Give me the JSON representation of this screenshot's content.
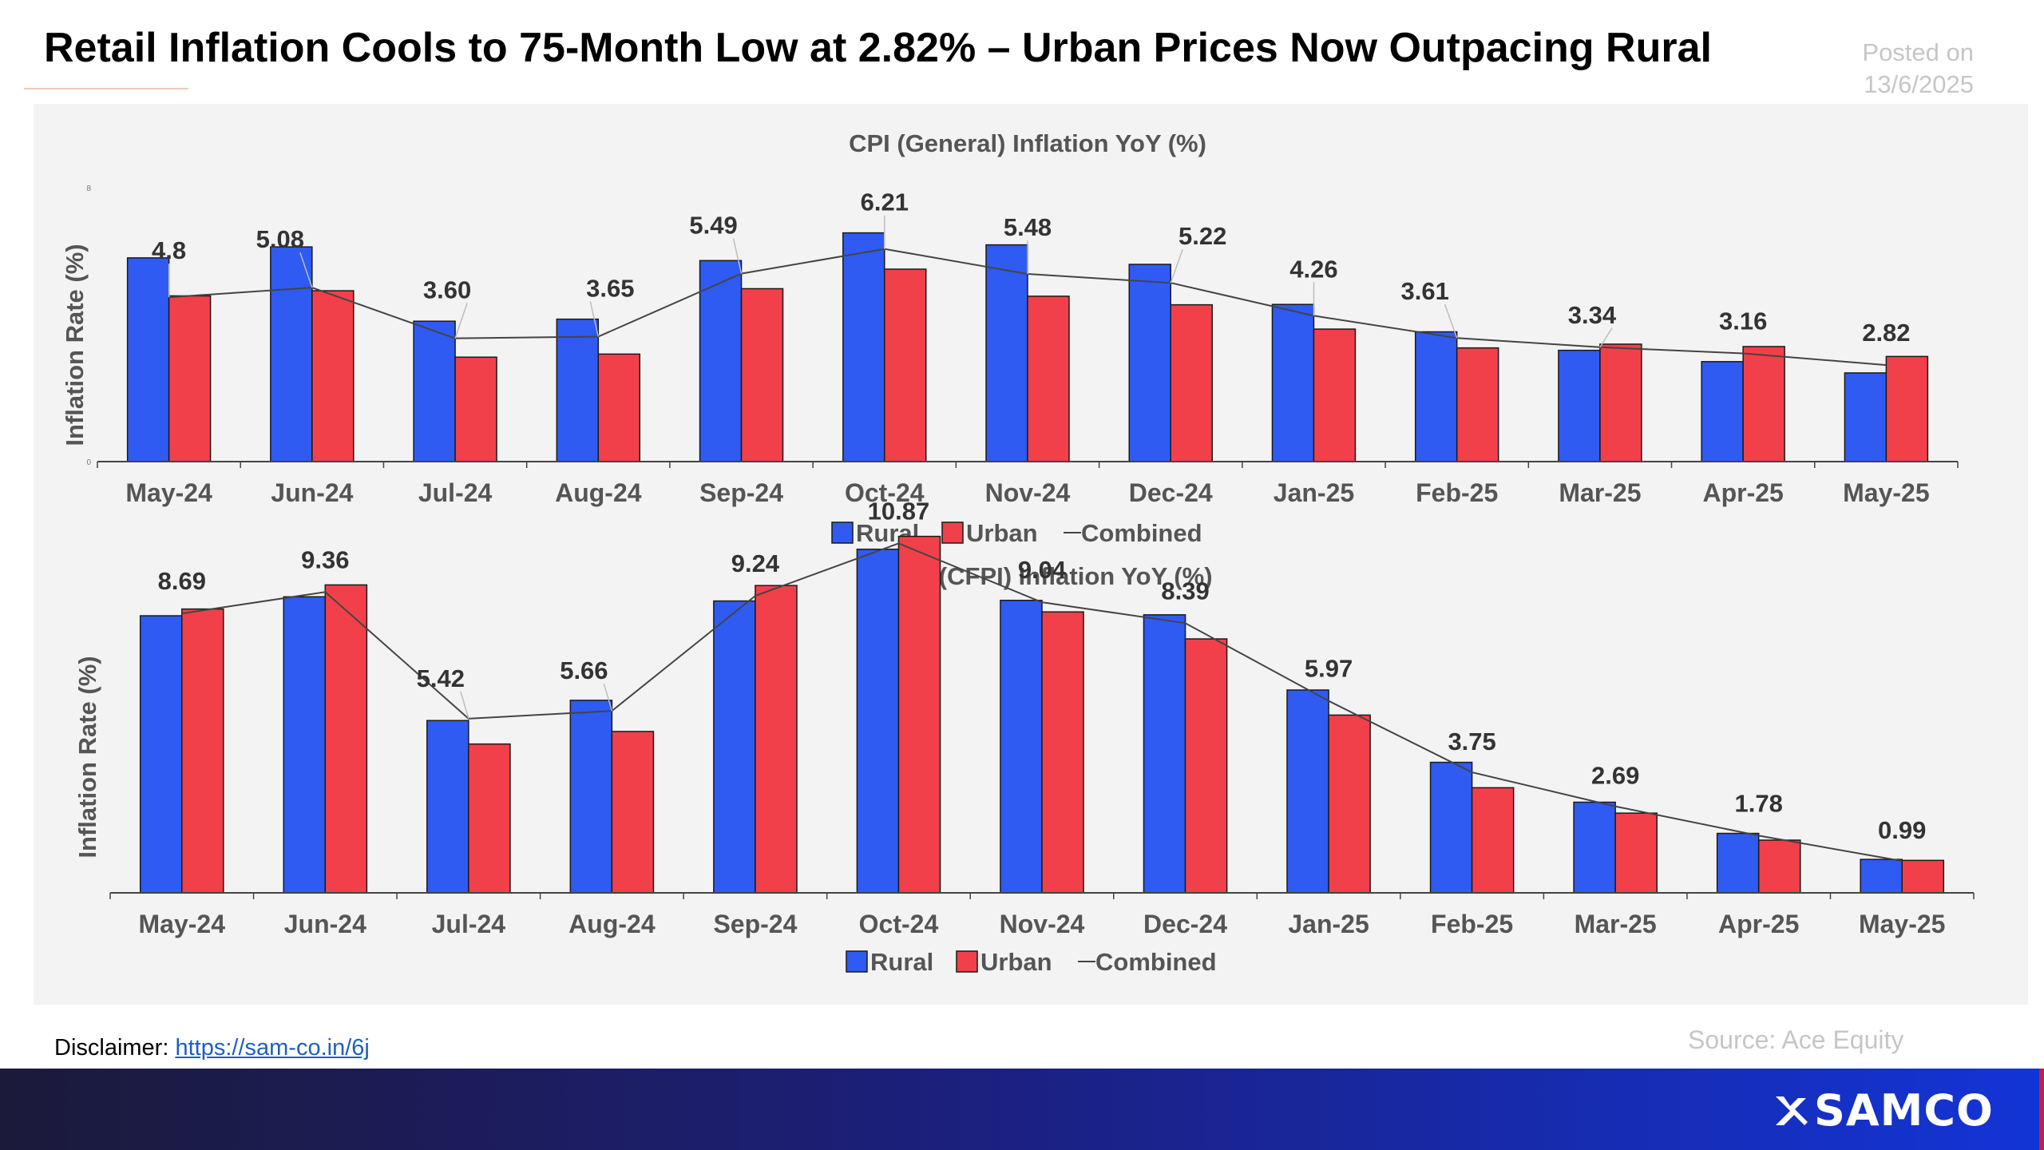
{
  "header": {
    "title": "Retail Inflation Cools to 75-Month Low at 2.82% – Urban Prices Now Outpacing Rural",
    "posted_label": "Posted on",
    "posted_date": "13/6/2025"
  },
  "chart_data": [
    {
      "type": "bar",
      "title": "CPI (General) Inflation YoY (%)",
      "ylabel": "Inflation Rate (%)",
      "ylim": [
        0,
        8
      ],
      "yticks": [
        "0",
        "8"
      ],
      "categories": [
        "May-24",
        "Jun-24",
        "Jul-24",
        "Aug-24",
        "Sep-24",
        "Oct-24",
        "Nov-24",
        "Dec-24",
        "Jan-25",
        "Feb-25",
        "Mar-25",
        "Apr-25",
        "May-25"
      ],
      "series": [
        {
          "name": "Rural",
          "kind": "bar",
          "color": "#2f5bf2",
          "values": [
            5.95,
            6.27,
            4.1,
            4.16,
            5.87,
            6.68,
            6.33,
            5.76,
            4.59,
            3.79,
            3.25,
            2.92,
            2.59
          ]
        },
        {
          "name": "Urban",
          "kind": "bar",
          "color": "#f2404a",
          "values": [
            4.84,
            4.99,
            3.05,
            3.14,
            5.05,
            5.62,
            4.83,
            4.58,
            3.87,
            3.32,
            3.43,
            3.36,
            3.07
          ]
        },
        {
          "name": "Combined",
          "kind": "line",
          "color": "#444444",
          "values": [
            4.8,
            5.08,
            3.6,
            3.65,
            5.49,
            6.21,
            5.48,
            5.22,
            4.26,
            3.61,
            3.34,
            3.16,
            2.82
          ]
        }
      ],
      "labels": [
        "4.8",
        "5.08",
        "3.60",
        "3.65",
        "5.49",
        "6.21",
        "5.48",
        "5.22",
        "4.26",
        "3.61",
        "3.34",
        "3.16",
        "2.82"
      ],
      "legend": [
        "Rural",
        "Urban",
        "Combined"
      ],
      "legend_position": "bottom-center",
      "grid": false
    },
    {
      "type": "bar",
      "title": "Food (CFPI) Inflation YoY (%)",
      "ylabel": "Inflation Rate (%)",
      "ylim": [
        0,
        12
      ],
      "categories": [
        "May-24",
        "Jun-24",
        "Jul-24",
        "Aug-24",
        "Sep-24",
        "Oct-24",
        "Nov-24",
        "Dec-24",
        "Jan-25",
        "Feb-25",
        "Mar-25",
        "Apr-25",
        "May-25"
      ],
      "series": [
        {
          "name": "Rural",
          "kind": "bar",
          "color": "#2f5bf2",
          "values": [
            8.62,
            9.21,
            5.36,
            5.99,
            9.08,
            10.69,
            9.1,
            8.65,
            6.31,
            4.06,
            2.82,
            1.85,
            1.04
          ]
        },
        {
          "name": "Urban",
          "kind": "bar",
          "color": "#f2404a",
          "values": [
            8.83,
            9.58,
            4.63,
            5.02,
            9.56,
            11.09,
            8.74,
            7.9,
            5.53,
            3.27,
            2.48,
            1.64,
            1.01
          ]
        },
        {
          "name": "Combined",
          "kind": "line",
          "color": "#444444",
          "values": [
            8.69,
            9.36,
            5.42,
            5.66,
            9.24,
            10.87,
            9.04,
            8.39,
            5.97,
            3.75,
            2.69,
            1.78,
            0.99
          ]
        }
      ],
      "labels": [
        "8.69",
        "9.36",
        "5.42",
        "5.66",
        "9.24",
        "10.87",
        "9.04",
        "8.39",
        "5.97",
        "3.75",
        "2.69",
        "1.78",
        "0.99"
      ],
      "legend": [
        "Rural",
        "Urban",
        "Combined"
      ],
      "legend_position": "bottom-center",
      "grid": false
    }
  ],
  "footer": {
    "disclaimer_label": "Disclaimer:",
    "disclaimer_link": "https://sam-co.in/6j",
    "source": "Source: Ace Equity",
    "brand": "SAMCO"
  },
  "colors": {
    "rural": "#2f5bf2",
    "urban": "#f2404a",
    "combined": "#444444",
    "panel": "#f3f3f3"
  }
}
